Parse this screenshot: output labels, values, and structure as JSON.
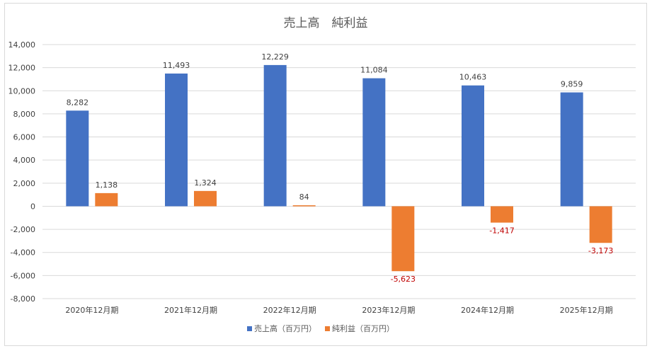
{
  "chart_data": {
    "type": "bar",
    "title": "売上高　純利益",
    "categories": [
      "2020年12月期",
      "2021年12月期",
      "2022年12月期",
      "2023年12月期",
      "2024年12月期",
      "2025年12月期"
    ],
    "series": [
      {
        "name": "売上高（百万円）",
        "color": "#4472c4",
        "values": [
          8282,
          11493,
          12229,
          11084,
          10463,
          9859
        ],
        "labels": [
          "8,282",
          "11,493",
          "12,229",
          "11,084",
          "10,463",
          "9,859"
        ]
      },
      {
        "name": "純利益（百万円）",
        "color": "#ed7d31",
        "values": [
          1138,
          1324,
          84,
          -5623,
          -1417,
          -3173
        ],
        "labels": [
          "1,138",
          "1,324",
          "84",
          "-5,623",
          "-1,417",
          "-3,173"
        ]
      }
    ],
    "ylim": [
      -8000,
      14000
    ],
    "yticks": [
      14000,
      12000,
      10000,
      8000,
      6000,
      4000,
      2000,
      0,
      -2000,
      -4000,
      -6000,
      -8000
    ],
    "ytick_labels": [
      "14,000",
      "12,000",
      "10,000",
      "8,000",
      "6,000",
      "4,000",
      "2,000",
      "0",
      "-2,000",
      "-4,000",
      "-6,000",
      "-8,000"
    ],
    "grid": true,
    "legend": "bottom",
    "negative_label_color": "#c00000",
    "xlabel": "",
    "ylabel": ""
  }
}
